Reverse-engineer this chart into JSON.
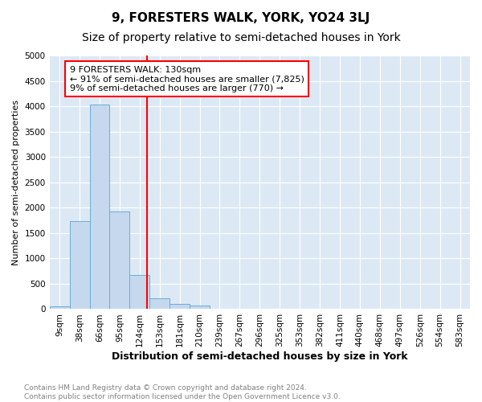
{
  "title": "9, FORESTERS WALK, YORK, YO24 3LJ",
  "subtitle": "Size of property relative to semi-detached houses in York",
  "xlabel": "Distribution of semi-detached houses by size in York",
  "ylabel": "Number of semi-detached properties",
  "footnote1": "Contains HM Land Registry data © Crown copyright and database right 2024.",
  "footnote2": "Contains public sector information licensed under the Open Government Licence v3.0.",
  "bin_labels": [
    "9sqm",
    "38sqm",
    "66sqm",
    "95sqm",
    "124sqm",
    "153sqm",
    "181sqm",
    "210sqm",
    "239sqm",
    "267sqm",
    "296sqm",
    "325sqm",
    "353sqm",
    "382sqm",
    "411sqm",
    "440sqm",
    "468sqm",
    "497sqm",
    "526sqm",
    "554sqm",
    "583sqm"
  ],
  "bar_heights": [
    55,
    1740,
    4030,
    1920,
    670,
    220,
    100,
    75,
    0,
    0,
    0,
    0,
    0,
    0,
    0,
    0,
    0,
    0,
    0,
    0,
    0
  ],
  "bar_color": "#c5d8ee",
  "bar_edge_color": "#6aaed6",
  "vline_index": 4.35,
  "vline_color": "red",
  "annotation_text": "9 FORESTERS WALK: 130sqm\n← 91% of semi-detached houses are smaller (7,825)\n9% of semi-detached houses are larger (770) →",
  "annotation_box_color": "white",
  "annotation_box_edge": "red",
  "ylim": [
    0,
    5000
  ],
  "yticks": [
    0,
    500,
    1000,
    1500,
    2000,
    2500,
    3000,
    3500,
    4000,
    4500,
    5000
  ],
  "background_color": "#dce9f5",
  "grid_color": "white",
  "title_fontsize": 11,
  "subtitle_fontsize": 10,
  "xlabel_fontsize": 9,
  "ylabel_fontsize": 8,
  "tick_fontsize": 7.5,
  "annot_fontsize": 8
}
